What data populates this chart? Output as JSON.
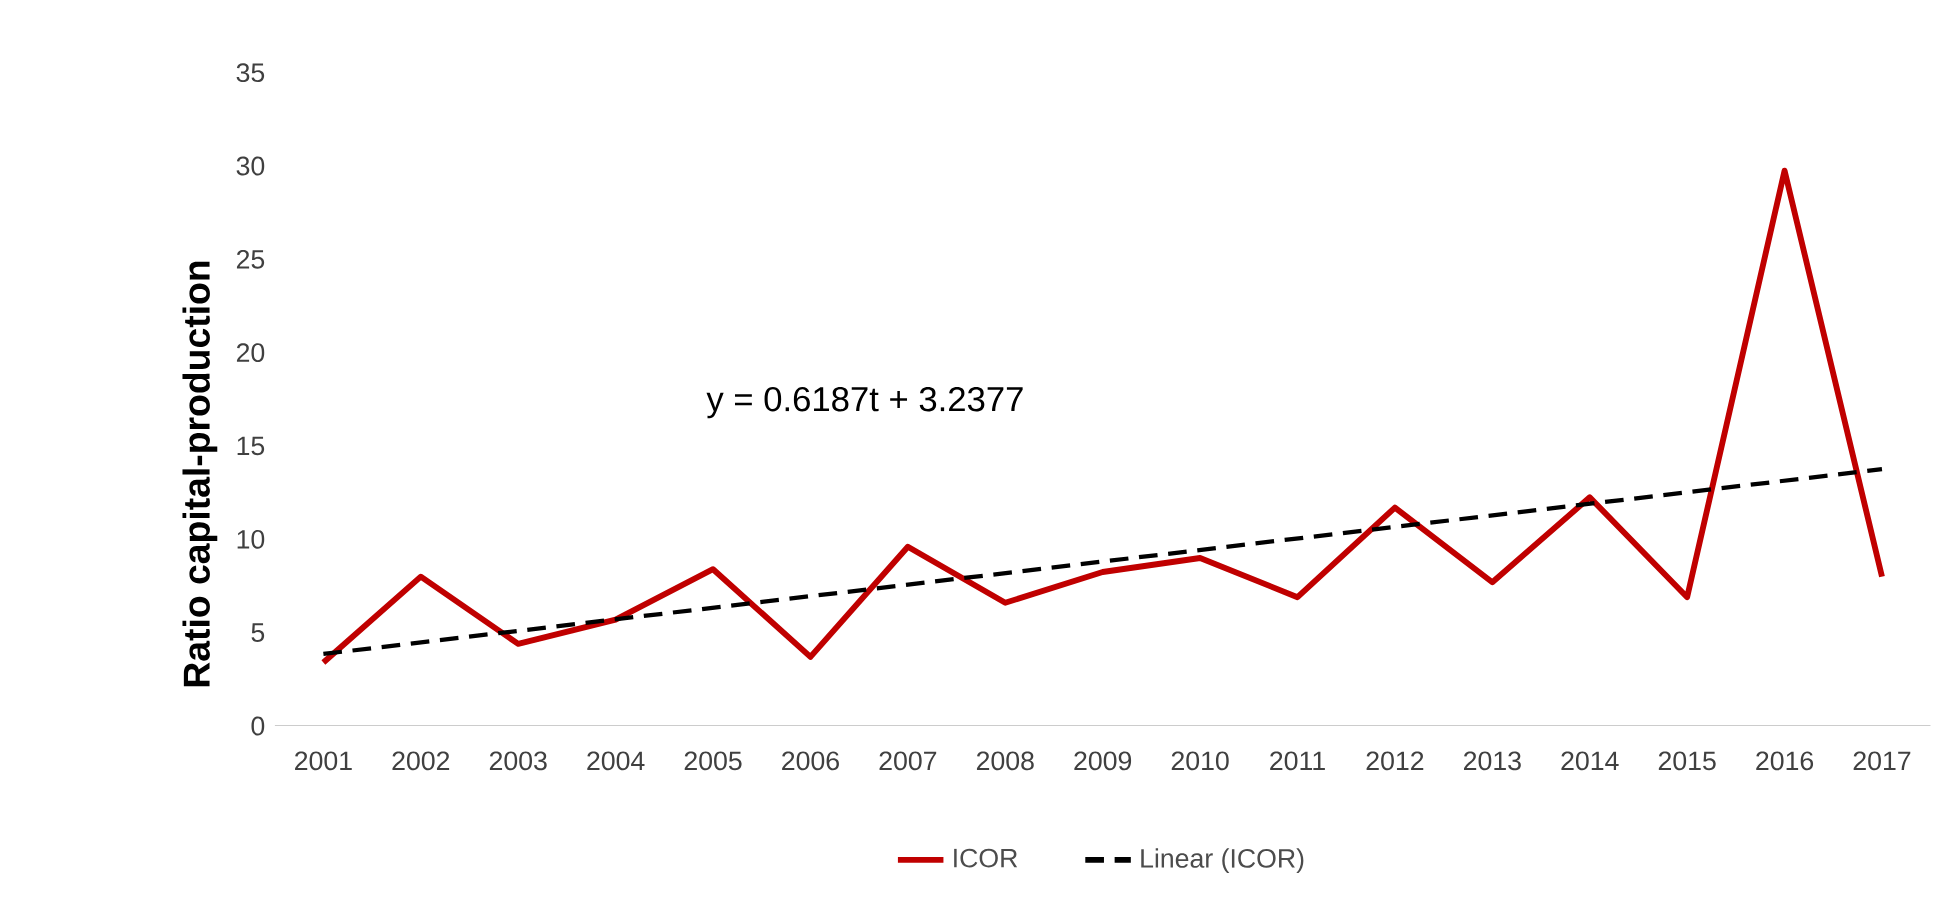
{
  "chart_data": {
    "type": "line",
    "ylabel": "Ratio capital-production",
    "x": [
      2001,
      2002,
      2003,
      2004,
      2005,
      2006,
      2007,
      2008,
      2009,
      2010,
      2011,
      2012,
      2013,
      2014,
      2015,
      2016,
      2017
    ],
    "xlim": [
      2000.5,
      2017.5
    ],
    "xticks": [
      2001,
      2002,
      2003,
      2004,
      2005,
      2006,
      2007,
      2008,
      2009,
      2010,
      2011,
      2012,
      2013,
      2014,
      2015,
      2016,
      2017
    ],
    "ylim": [
      0,
      35
    ],
    "yticks": [
      0,
      5,
      10,
      15,
      20,
      25,
      30,
      35
    ],
    "series": [
      {
        "name": "ICOR",
        "color": "#c00000",
        "line_style": "solid",
        "values": [
          3.4,
          8.0,
          4.4,
          5.7,
          8.4,
          3.7,
          9.6,
          6.6,
          8.25,
          9.0,
          6.9,
          11.7,
          7.7,
          12.25,
          6.9,
          29.75,
          8.0
        ]
      },
      {
        "name": "Linear (ICOR)",
        "color": "#000000",
        "line_style": "dashed",
        "x": [
          2001,
          2017
        ],
        "values": [
          3.86,
          13.76
        ]
      }
    ],
    "annotations": [
      "y = 0.6187t + 3.2377"
    ],
    "legend": "bottom",
    "grid": false,
    "marker": "none"
  }
}
